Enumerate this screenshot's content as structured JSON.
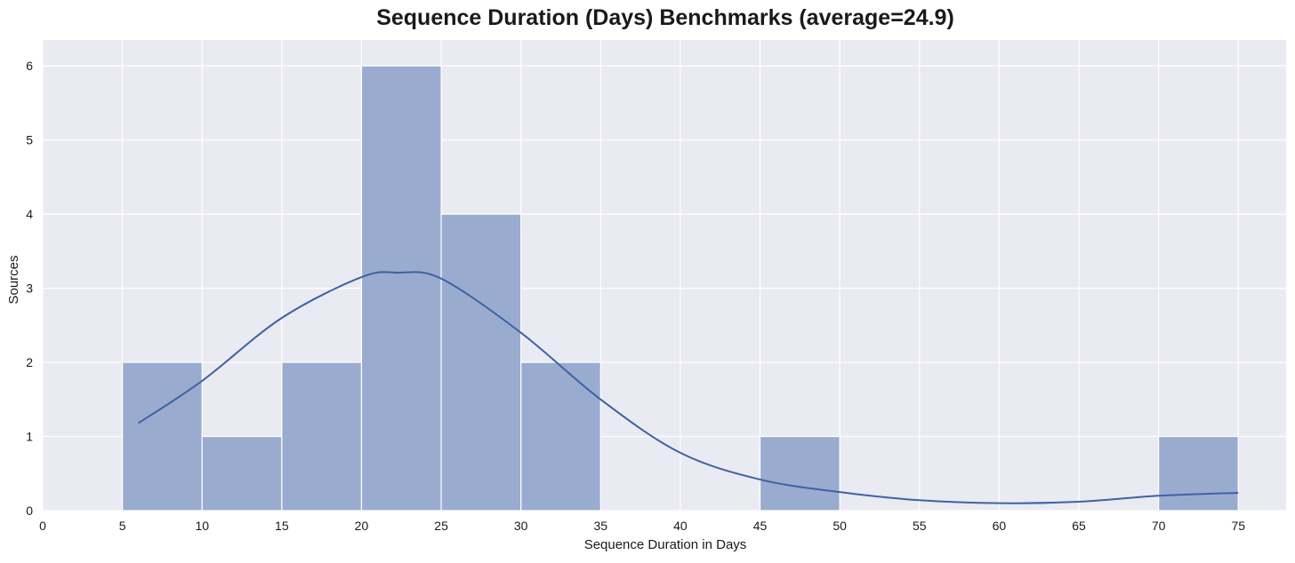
{
  "chart_data": {
    "type": "bar",
    "subtype": "histogram-with-kde",
    "title": "Sequence Duration (Days) Benchmarks (average=24.9)",
    "xlabel": "Sequence Duration in Days",
    "ylabel": "Sources",
    "xlim": [
      0,
      78
    ],
    "ylim": [
      0,
      6.35
    ],
    "grid": true,
    "x_ticks": [
      0,
      5,
      10,
      15,
      20,
      25,
      30,
      35,
      40,
      45,
      50,
      55,
      60,
      65,
      70,
      75
    ],
    "y_ticks": [
      0,
      1,
      2,
      3,
      4,
      5,
      6
    ],
    "bins": [
      {
        "start": 5,
        "end": 10,
        "count": 2
      },
      {
        "start": 10,
        "end": 15,
        "count": 1
      },
      {
        "start": 15,
        "end": 20,
        "count": 2
      },
      {
        "start": 20,
        "end": 25,
        "count": 6
      },
      {
        "start": 25,
        "end": 30,
        "count": 4
      },
      {
        "start": 30,
        "end": 35,
        "count": 2
      },
      {
        "start": 35,
        "end": 40,
        "count": 0
      },
      {
        "start": 40,
        "end": 45,
        "count": 0
      },
      {
        "start": 45,
        "end": 50,
        "count": 1
      },
      {
        "start": 50,
        "end": 55,
        "count": 0
      },
      {
        "start": 55,
        "end": 60,
        "count": 0
      },
      {
        "start": 60,
        "end": 65,
        "count": 0
      },
      {
        "start": 65,
        "end": 70,
        "count": 0
      },
      {
        "start": 70,
        "end": 75,
        "count": 1
      }
    ],
    "kde": {
      "x": [
        6,
        10,
        15,
        20,
        22.3,
        25,
        30,
        35,
        40,
        45,
        50,
        55,
        60,
        65,
        70,
        75
      ],
      "y": [
        1.18,
        1.75,
        2.6,
        3.15,
        3.21,
        3.13,
        2.4,
        1.5,
        0.78,
        0.42,
        0.25,
        0.14,
        0.1,
        0.12,
        0.2,
        0.24
      ]
    },
    "colors": {
      "plot_background": "#eaeaf2",
      "grid": "#ffffff",
      "bar_fill": "#99acd0",
      "bar_edge": "#ffffff",
      "kde_line": "#3d63a3"
    }
  }
}
